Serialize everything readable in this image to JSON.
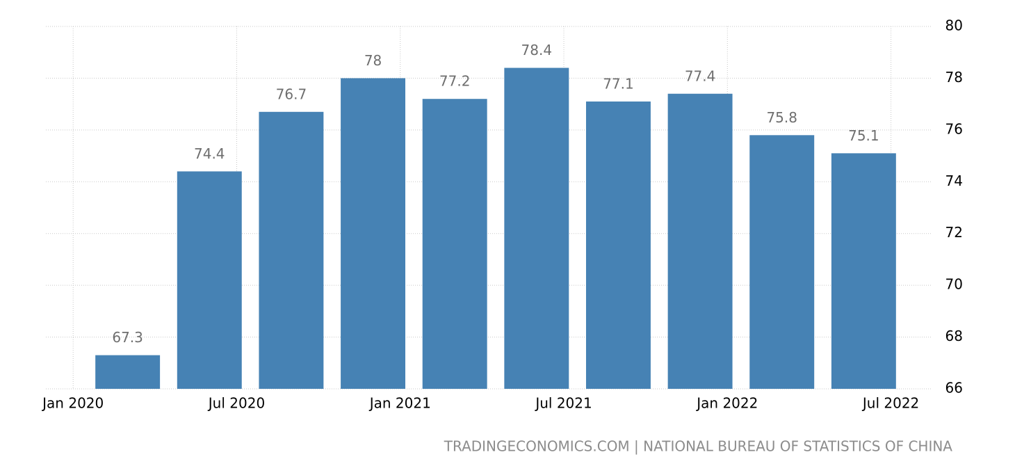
{
  "chart_data": {
    "type": "bar",
    "x": [
      "2020-03",
      "2020-06",
      "2020-09",
      "2020-12",
      "2021-03",
      "2021-06",
      "2021-09",
      "2021-12",
      "2022-03",
      "2022-06"
    ],
    "values": [
      67.3,
      74.4,
      76.7,
      78,
      77.2,
      78.4,
      77.1,
      77.4,
      75.8,
      75.1
    ],
    "color": "#4682b4",
    "xlim": [
      "2019-12",
      "2022-09"
    ],
    "xticks": [
      {
        "value": "2020-01",
        "label": "Jan 2020"
      },
      {
        "value": "2020-07",
        "label": "Jul 2020"
      },
      {
        "value": "2021-01",
        "label": "Jan 2021"
      },
      {
        "value": "2021-07",
        "label": "Jul 2021"
      },
      {
        "value": "2022-01",
        "label": "Jan 2022"
      },
      {
        "value": "2022-07",
        "label": "Jul 2022"
      }
    ],
    "ylim": [
      66,
      80
    ],
    "yticks": [
      66,
      68,
      70,
      72,
      74,
      76,
      78,
      80
    ],
    "grid": true,
    "source": "TRADINGECONOMICS.COM | NATIONAL BUREAU OF STATISTICS OF CHINA"
  }
}
